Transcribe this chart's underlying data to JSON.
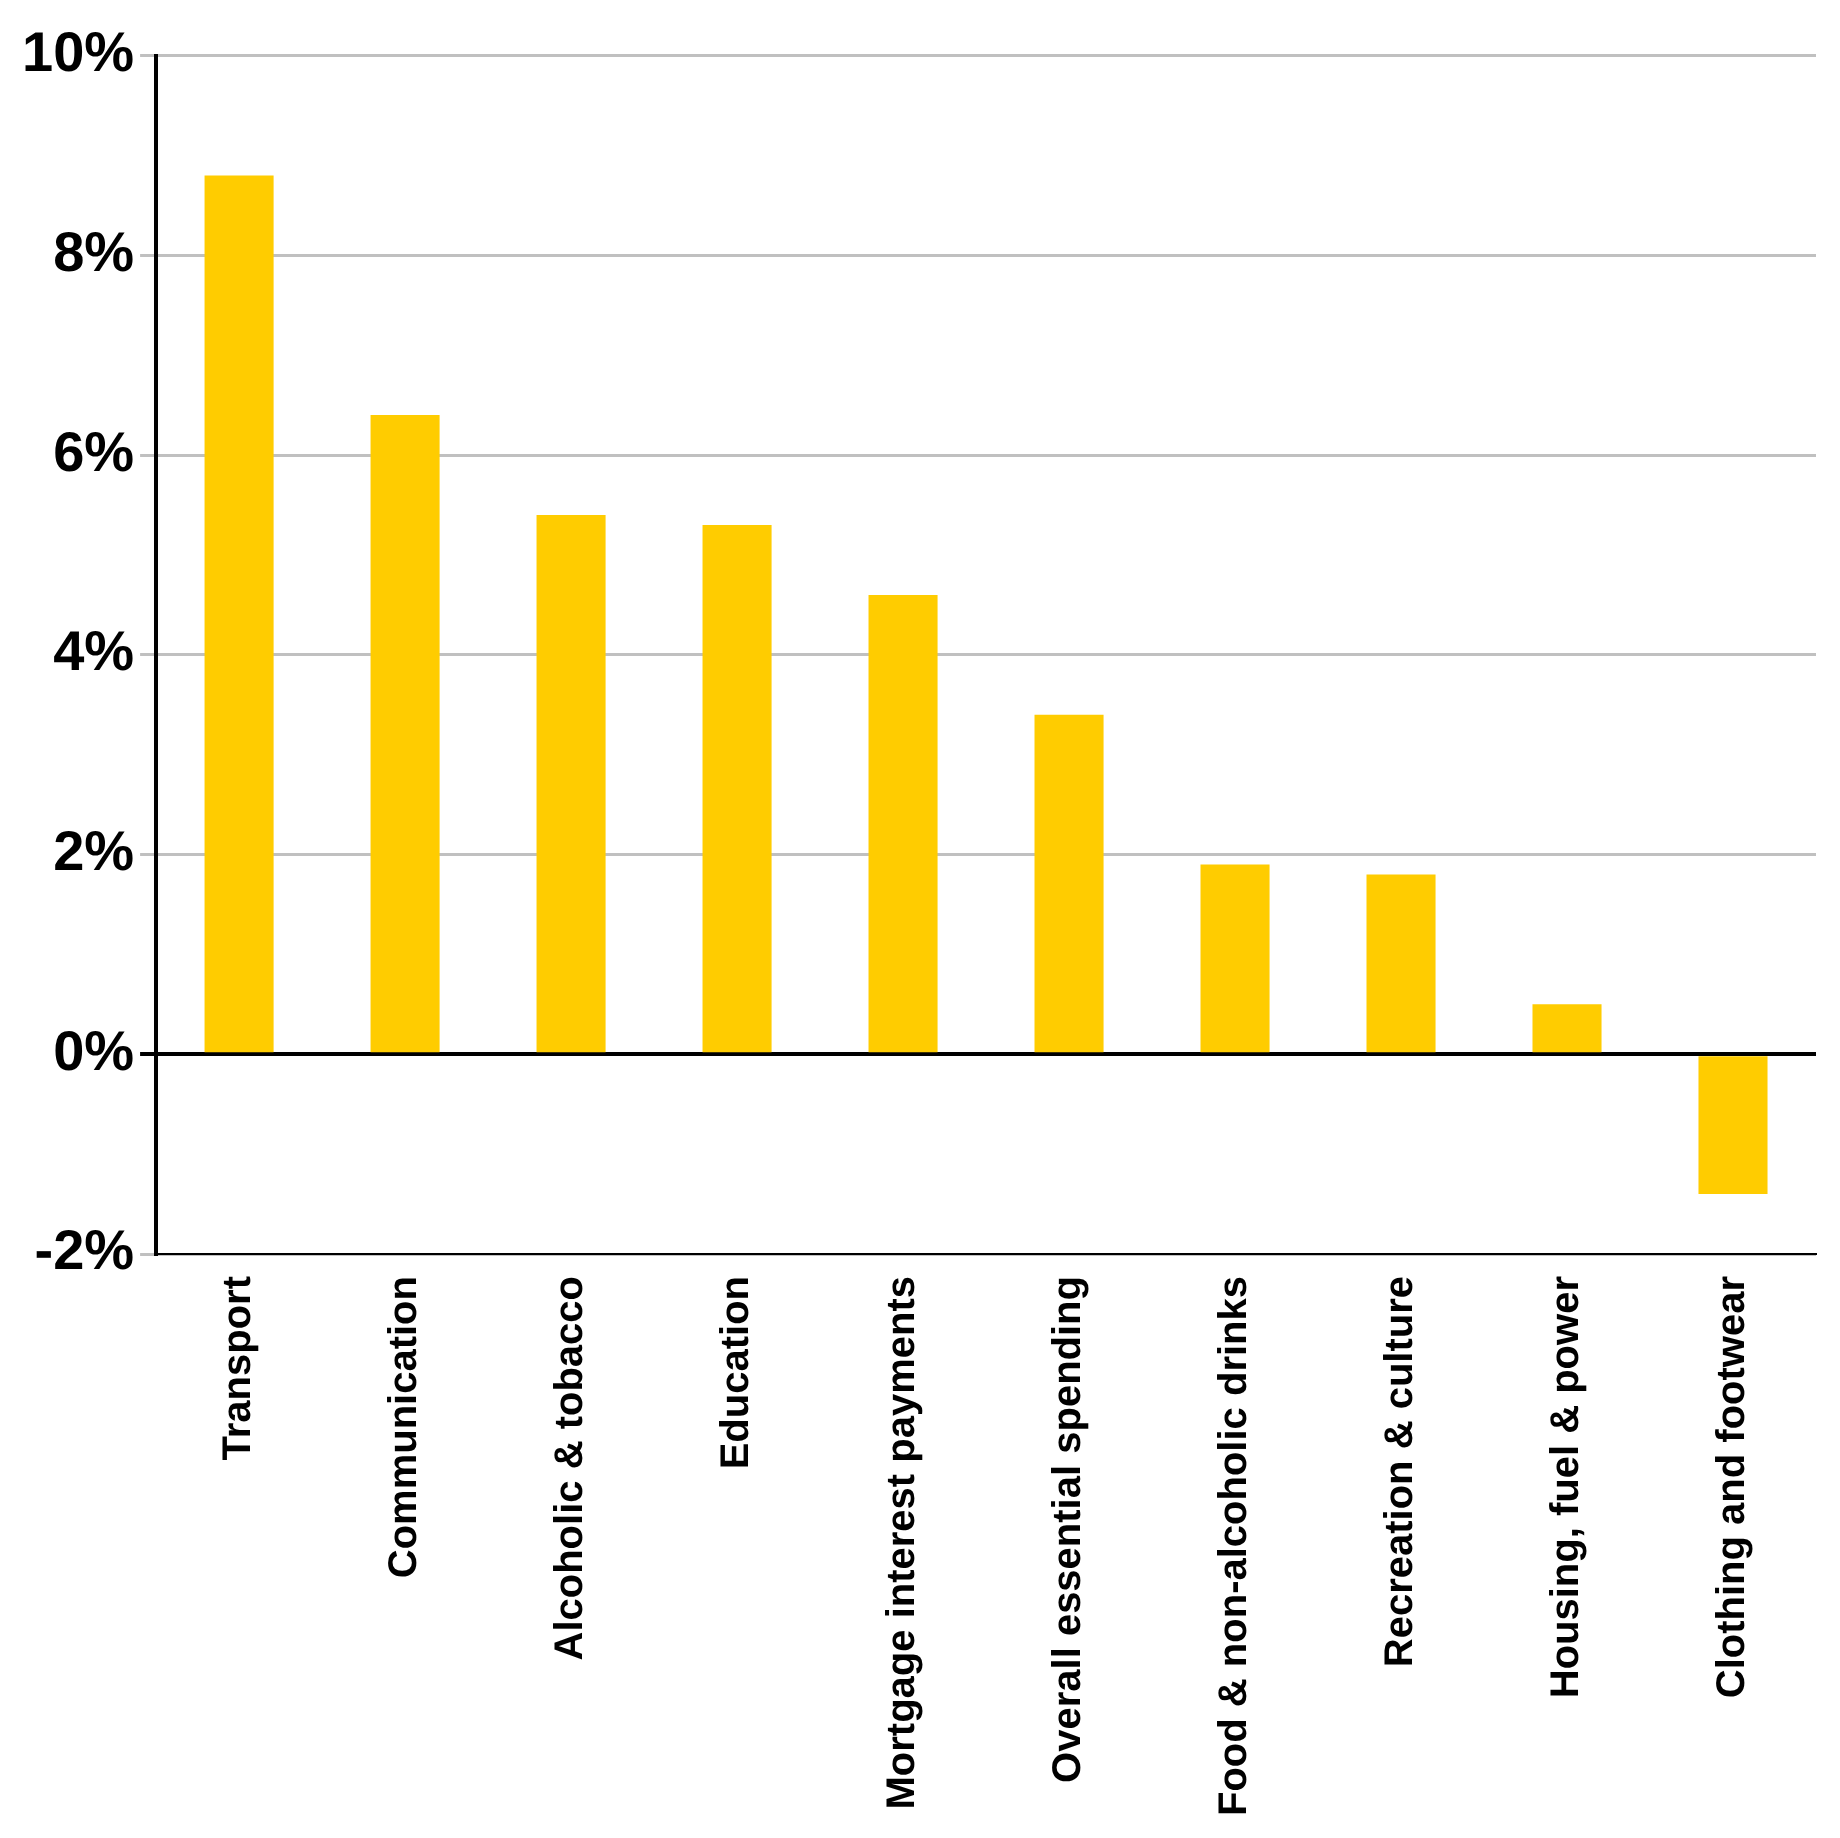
{
  "chart_data": {
    "type": "bar",
    "categories": [
      "Transport",
      "Communication",
      "Alcoholic & tobacco",
      "Education",
      "Mortgage interest payments",
      "Overall essential spending",
      "Food & non-alcoholic drinks",
      "Recreation & culture",
      "Housing, fuel & power",
      "Clothing and footwear"
    ],
    "values": [
      8.8,
      6.4,
      5.4,
      5.3,
      4.6,
      3.4,
      1.9,
      1.8,
      0.5,
      -1.4
    ],
    "color": "#ffcc00",
    "ylim": [
      -2,
      10
    ],
    "yticks": [
      {
        "value": -2,
        "label": "-2%"
      },
      {
        "value": 0,
        "label": "0%"
      },
      {
        "value": 2,
        "label": "2%"
      },
      {
        "value": 4,
        "label": "4%"
      },
      {
        "value": 6,
        "label": "6%"
      },
      {
        "value": 8,
        "label": "8%"
      },
      {
        "value": 10,
        "label": "10%"
      }
    ],
    "grid": "y",
    "legend": false
  }
}
